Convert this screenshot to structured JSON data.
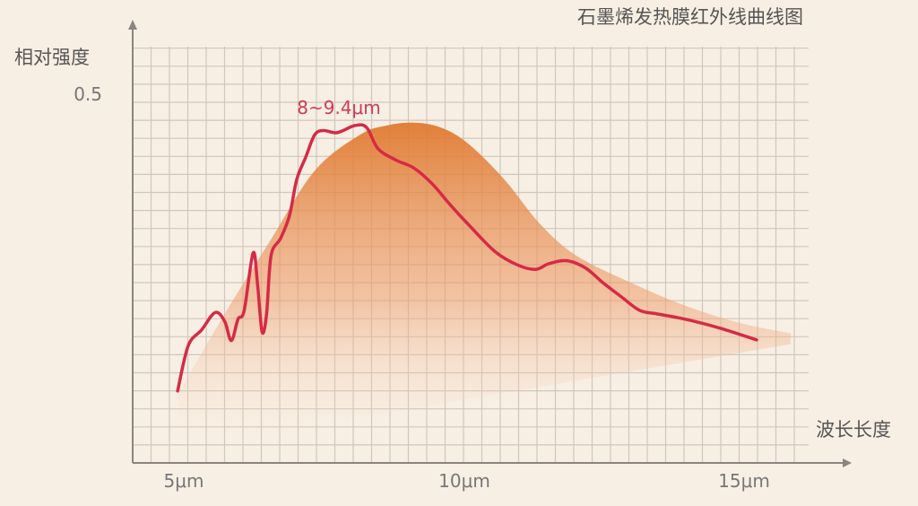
{
  "chart_data": {
    "type": "line",
    "title": "石墨烯发热膜红外线曲线图",
    "xlabel": "波长长度",
    "ylabel": "相对强度",
    "x_ticks": [
      {
        "value": 5,
        "label": "5μm"
      },
      {
        "value": 10,
        "label": "10μm"
      },
      {
        "value": 15,
        "label": "15μm"
      }
    ],
    "y_ticks": [
      {
        "value": 0.5,
        "label": "0.5"
      }
    ],
    "xlim": [
      4.1,
      16.0
    ],
    "ylim": [
      0,
      0.58
    ],
    "grid": true,
    "annotation": {
      "text": "8~9.4μm",
      "x": 8.3,
      "y": 0.5
    },
    "colors": {
      "line": "#d62a45",
      "area": "#e07a30",
      "background": "#f8efe4",
      "grid": "#cfc6bc",
      "axis": "#8a8580"
    },
    "series": [
      {
        "type": "line",
        "points": [
          [
            4.89,
            0.1
          ],
          [
            5.08,
            0.163
          ],
          [
            5.32,
            0.185
          ],
          [
            5.56,
            0.209
          ],
          [
            5.73,
            0.197
          ],
          [
            5.85,
            0.17
          ],
          [
            5.97,
            0.2
          ],
          [
            6.08,
            0.212
          ],
          [
            6.24,
            0.292
          ],
          [
            6.32,
            0.247
          ],
          [
            6.4,
            0.182
          ],
          [
            6.48,
            0.207
          ],
          [
            6.56,
            0.288
          ],
          [
            6.73,
            0.312
          ],
          [
            6.89,
            0.344
          ],
          [
            7.02,
            0.394
          ],
          [
            7.18,
            0.425
          ],
          [
            7.34,
            0.456
          ],
          [
            7.5,
            0.462
          ],
          [
            7.74,
            0.459
          ],
          [
            8.06,
            0.469
          ],
          [
            8.27,
            0.466
          ],
          [
            8.47,
            0.437
          ],
          [
            8.79,
            0.421
          ],
          [
            9.11,
            0.41
          ],
          [
            9.44,
            0.388
          ],
          [
            9.76,
            0.359
          ],
          [
            10.08,
            0.332
          ],
          [
            10.56,
            0.294
          ],
          [
            10.97,
            0.275
          ],
          [
            11.29,
            0.269
          ],
          [
            11.53,
            0.277
          ],
          [
            11.85,
            0.281
          ],
          [
            12.18,
            0.271
          ],
          [
            12.5,
            0.25
          ],
          [
            12.82,
            0.231
          ],
          [
            13.15,
            0.212
          ],
          [
            13.47,
            0.207
          ],
          [
            13.95,
            0.2
          ],
          [
            14.6,
            0.187
          ],
          [
            15.24,
            0.171
          ]
        ]
      },
      {
        "type": "area",
        "points": [
          [
            4.89,
            0.095
          ],
          [
            5.73,
            0.207
          ],
          [
            6.53,
            0.307
          ],
          [
            7.34,
            0.406
          ],
          [
            8.15,
            0.456
          ],
          [
            8.63,
            0.469
          ],
          [
            9.11,
            0.473
          ],
          [
            9.6,
            0.466
          ],
          [
            10.08,
            0.444
          ],
          [
            10.73,
            0.394
          ],
          [
            11.37,
            0.332
          ],
          [
            12.02,
            0.288
          ],
          [
            12.98,
            0.251
          ],
          [
            13.95,
            0.219
          ],
          [
            14.92,
            0.195
          ],
          [
            15.85,
            0.18
          ]
        ]
      }
    ]
  }
}
